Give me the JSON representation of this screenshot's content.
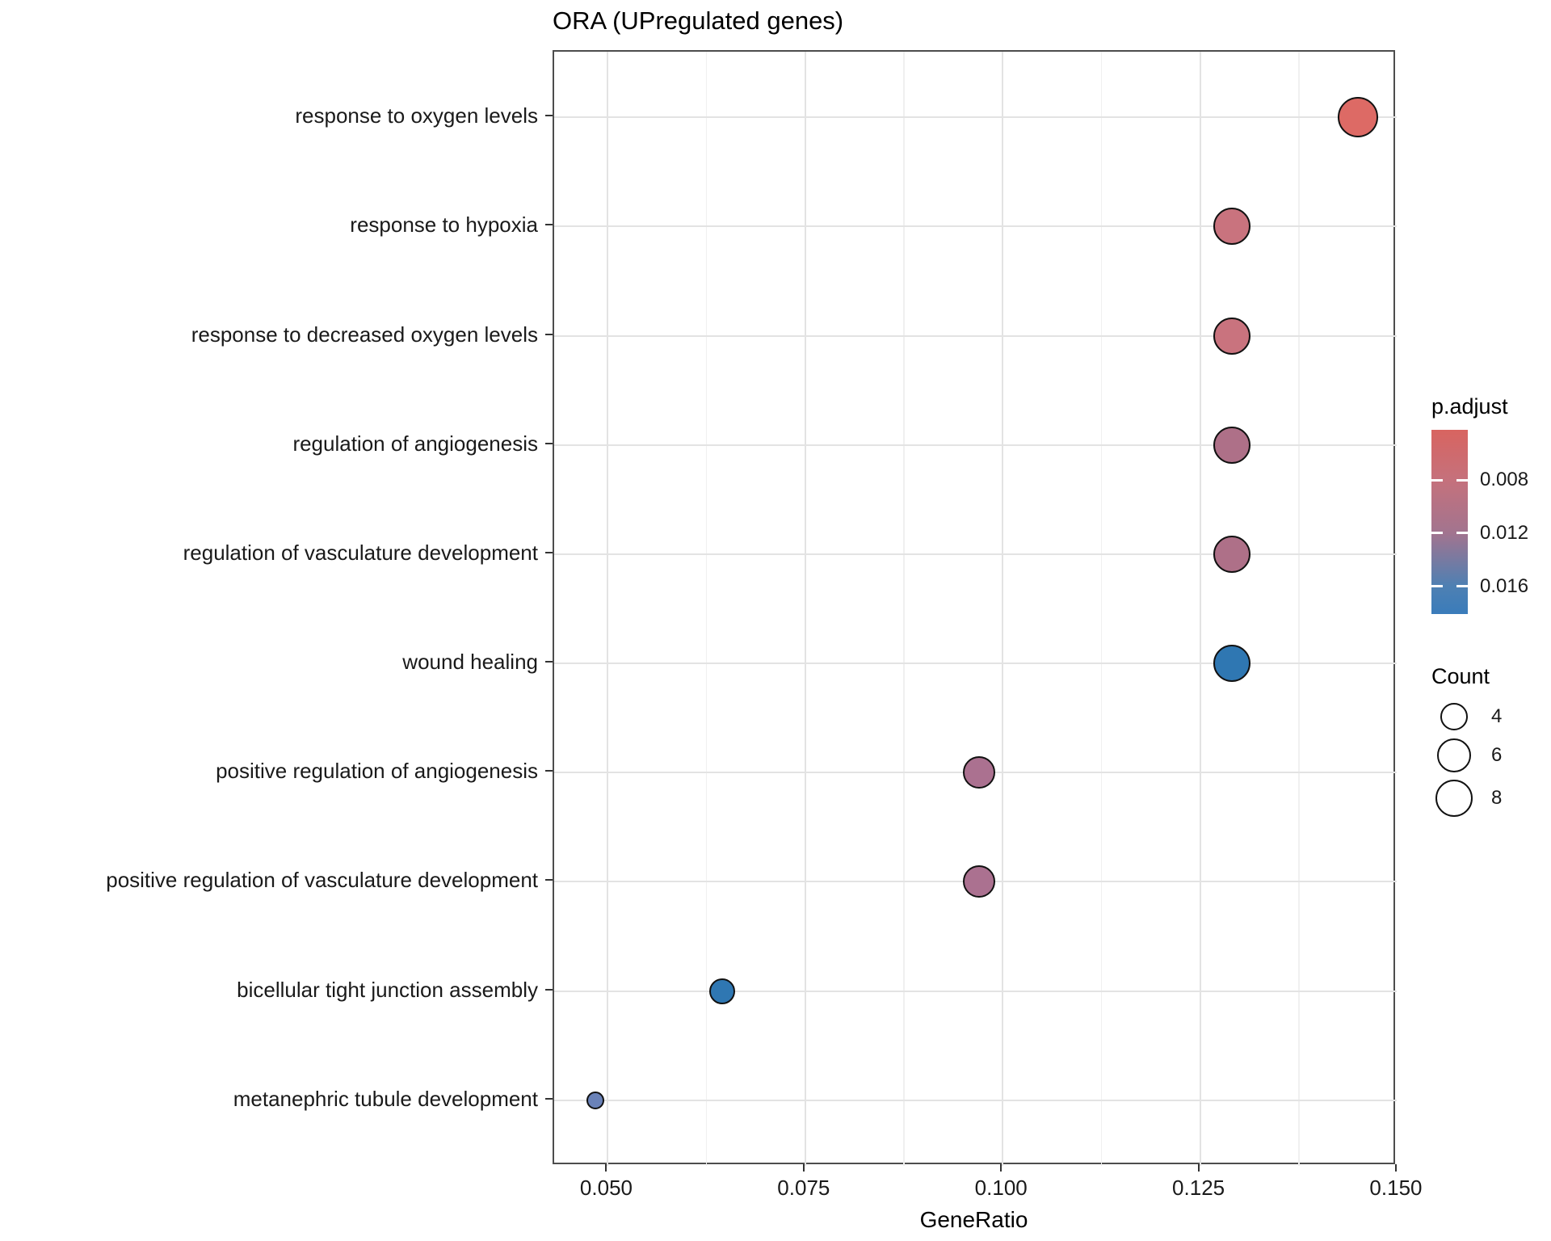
{
  "title": "ORA (UPregulated genes)",
  "chart_data": {
    "type": "scatter",
    "subtype": "enrichment-dotplot",
    "title": "ORA (UPregulated genes)",
    "xlabel": "GeneRatio",
    "grid": true,
    "legend_position": "right",
    "x_axis": {
      "tick_labels": [
        "0.050",
        "0.075",
        "0.100",
        "0.125",
        "0.150"
      ],
      "tick_values": [
        0.05,
        0.075,
        0.1,
        0.125,
        0.15
      ],
      "minor_tick_values": [
        0.0625,
        0.0875,
        0.1125,
        0.1375
      ],
      "range": [
        0.0432,
        0.1499
      ]
    },
    "categories": [
      "response to oxygen levels",
      "response to hypoxia",
      "response to decreased oxygen levels",
      "regulation of angiogenesis",
      "regulation of vasculature development",
      "wound healing",
      "positive regulation of angiogenesis",
      "positive regulation of vasculature development",
      "bicellular tight junction assembly",
      "metanephric tubule development"
    ],
    "points": [
      {
        "label": "response to oxygen levels",
        "gene_ratio": 0.145,
        "count": 9,
        "p_adjust": 0.005,
        "color": "#dd6a65",
        "radius_px": 25
      },
      {
        "label": "response to hypoxia",
        "gene_ratio": 0.129,
        "count": 8,
        "p_adjust": 0.007,
        "color": "#c9737e",
        "radius_px": 23
      },
      {
        "label": "response to decreased oxygen levels",
        "gene_ratio": 0.129,
        "count": 8,
        "p_adjust": 0.007,
        "color": "#c9737e",
        "radius_px": 23
      },
      {
        "label": "regulation of angiogenesis",
        "gene_ratio": 0.129,
        "count": 8,
        "p_adjust": 0.01,
        "color": "#ae7088",
        "radius_px": 23
      },
      {
        "label": "regulation of vasculature development",
        "gene_ratio": 0.129,
        "count": 8,
        "p_adjust": 0.01,
        "color": "#ae7088",
        "radius_px": 23
      },
      {
        "label": "wound healing",
        "gene_ratio": 0.129,
        "count": 8,
        "p_adjust": 0.0175,
        "color": "#2f77b2",
        "radius_px": 23
      },
      {
        "label": "positive regulation of angiogenesis",
        "gene_ratio": 0.097,
        "count": 6,
        "p_adjust": 0.011,
        "color": "#ab7190",
        "radius_px": 20
      },
      {
        "label": "positive regulation of vasculature development",
        "gene_ratio": 0.097,
        "count": 6,
        "p_adjust": 0.011,
        "color": "#ab7190",
        "radius_px": 20
      },
      {
        "label": "bicellular tight junction assembly",
        "gene_ratio": 0.0645,
        "count": 4,
        "p_adjust": 0.017,
        "color": "#2f77b2",
        "radius_px": 16
      },
      {
        "label": "metanephric tubule development",
        "gene_ratio": 0.0484,
        "count": 3,
        "p_adjust": 0.0145,
        "color": "#6a82b8",
        "radius_px": 11
      }
    ],
    "legend": {
      "p_adjust": {
        "title": "p.adjust",
        "tick_labels": [
          "0.008",
          "0.012",
          "0.016"
        ],
        "tick_values": [
          0.008,
          0.012,
          0.016
        ],
        "range": [
          0.0042,
          0.0181
        ],
        "gradient": [
          {
            "value": 0.0042,
            "color": "#d86460"
          },
          {
            "value": 0.008,
            "color": "#c5717c"
          },
          {
            "value": 0.012,
            "color": "#a2748f"
          },
          {
            "value": 0.016,
            "color": "#4e80b3"
          },
          {
            "value": 0.0181,
            "color": "#3a7cba"
          }
        ]
      },
      "count": {
        "title": "Count",
        "items": [
          {
            "label": "4",
            "value": 4,
            "radius_px": 17
          },
          {
            "label": "6",
            "value": 6,
            "radius_px": 21
          },
          {
            "label": "8",
            "value": 8,
            "radius_px": 23
          }
        ]
      }
    }
  }
}
